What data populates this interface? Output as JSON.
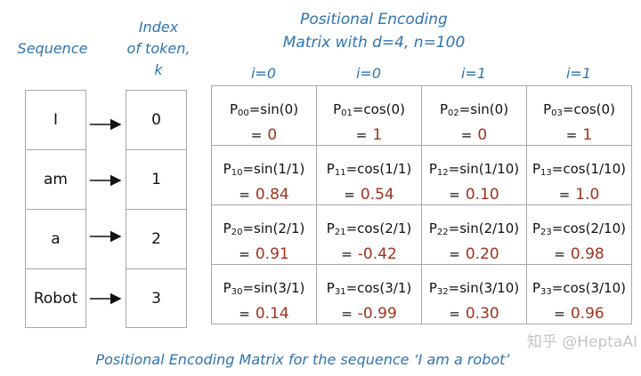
{
  "header": {
    "sequence_label": "Sequence",
    "index_label": [
      "Index",
      "of token,",
      "k"
    ],
    "matrix_title": [
      "Positional Encoding",
      "Matrix with d=4, n=100"
    ]
  },
  "column_headers": [
    "i=0",
    "i=0",
    "i=1",
    "i=1"
  ],
  "sequence": [
    "I",
    "am",
    "a",
    "Robot"
  ],
  "indices": [
    "0",
    "1",
    "2",
    "3"
  ],
  "equals": "=",
  "matrix": [
    [
      {
        "symbol": "P",
        "sub": "00",
        "formula": "=sin(0)",
        "value": "0"
      },
      {
        "symbol": "P",
        "sub": "01",
        "formula": "=cos(0)",
        "value": "1"
      },
      {
        "symbol": "P",
        "sub": "02",
        "formula": "=sin(0)",
        "value": "0"
      },
      {
        "symbol": "P",
        "sub": "03",
        "formula": "=cos(0)",
        "value": "1"
      }
    ],
    [
      {
        "symbol": "P",
        "sub": "10",
        "formula": "=sin(1/1)",
        "value": "0.84"
      },
      {
        "symbol": "P",
        "sub": "11",
        "formula": "=cos(1/1)",
        "value": "0.54"
      },
      {
        "symbol": "P",
        "sub": "12",
        "formula": "=sin(1/10)",
        "value": "0.10"
      },
      {
        "symbol": "P",
        "sub": "13",
        "formula": "=cos(1/10)",
        "value": "1.0"
      }
    ],
    [
      {
        "symbol": "P",
        "sub": "20",
        "formula": "=sin(2/1)",
        "value": "0.91"
      },
      {
        "symbol": "P",
        "sub": "21",
        "formula": "=cos(2/1)",
        "value": "-0.42"
      },
      {
        "symbol": "P",
        "sub": "22",
        "formula": "=sin(2/10)",
        "value": "0.20"
      },
      {
        "symbol": "P",
        "sub": "23",
        "formula": "=cos(2/10)",
        "value": "0.98"
      }
    ],
    [
      {
        "symbol": "P",
        "sub": "30",
        "formula": "=sin(3/1)",
        "value": "0.14"
      },
      {
        "symbol": "P",
        "sub": "31",
        "formula": "=cos(3/1)",
        "value": "-0.99"
      },
      {
        "symbol": "P",
        "sub": "32",
        "formula": "=sin(3/10)",
        "value": "0.30"
      },
      {
        "symbol": "P",
        "sub": "33",
        "formula": "=cos(3/10)",
        "value": "0.96"
      }
    ]
  ],
  "caption": "Positional Encoding Matrix for the sequence ‘I am a robot’",
  "watermark": "知乎 @HeptaAI"
}
